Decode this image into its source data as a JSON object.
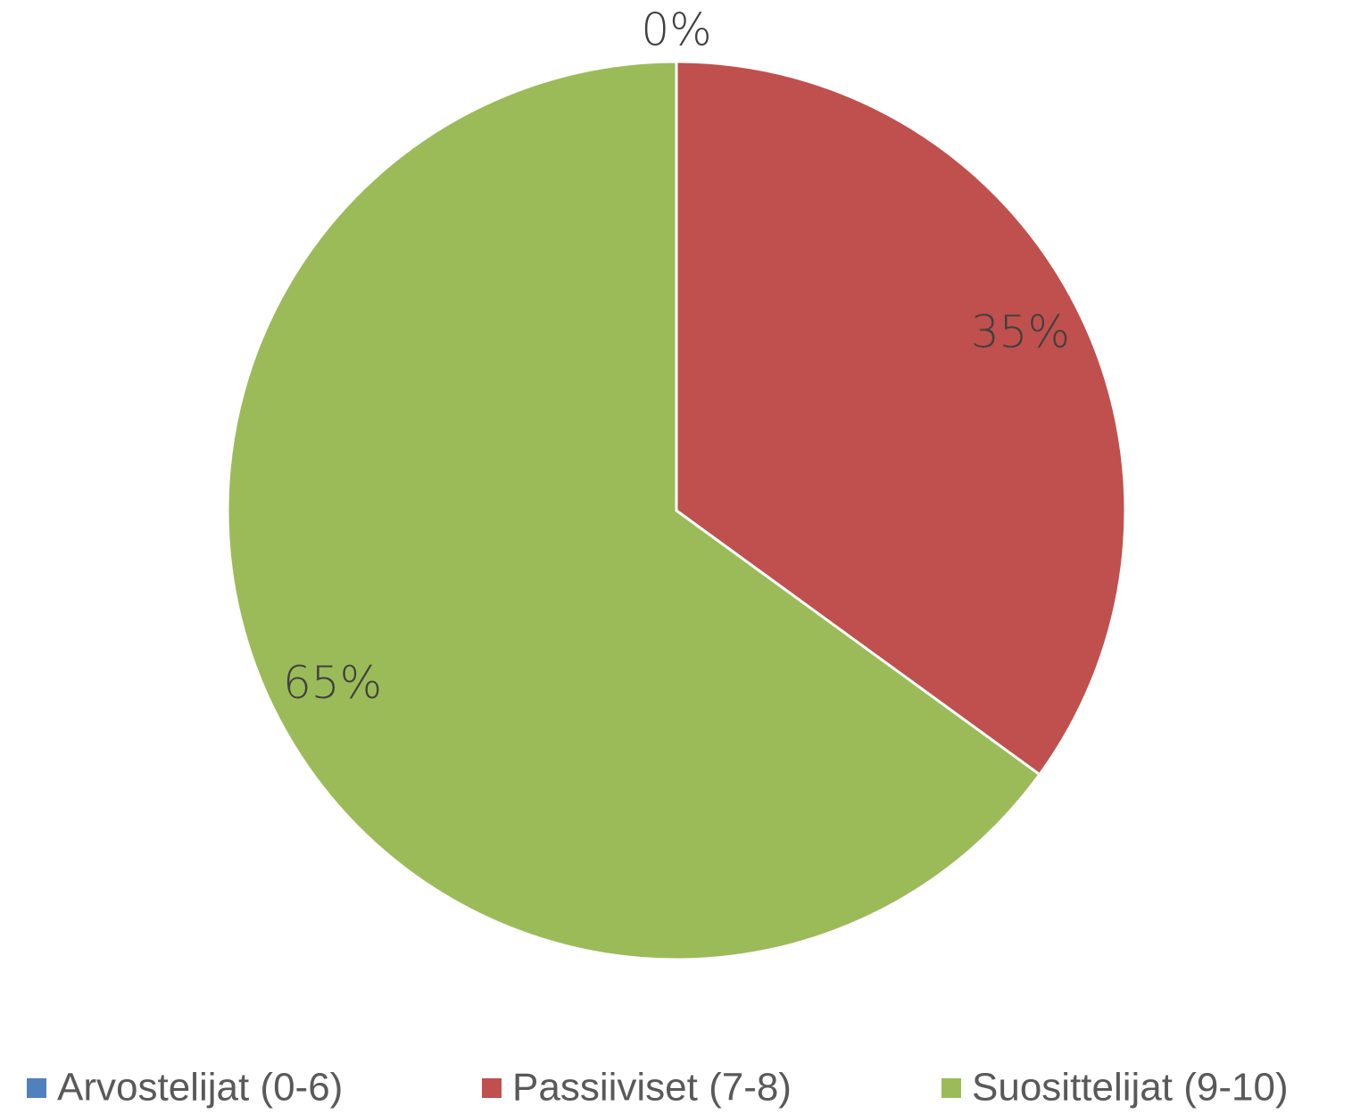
{
  "chart_data": {
    "type": "pie",
    "categories": [
      "Arvostelijat (0-6)",
      "Passiiviset (7-8)",
      "Suosittelijat (9-10)"
    ],
    "values": [
      0,
      35,
      65
    ],
    "value_labels": [
      "0%",
      "35%",
      "65%"
    ],
    "colors": [
      "#4f81bd",
      "#c0504d",
      "#9bbb59"
    ],
    "legend": "bottom"
  }
}
